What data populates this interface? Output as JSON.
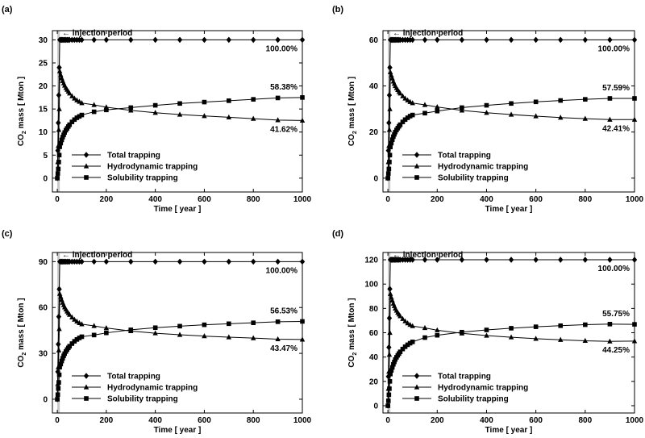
{
  "figure": {
    "ylabel_prefix": "CO",
    "ylabel_sub": "2",
    "ylabel_suffix": " mass [ Mton ]",
    "xlabel": "Time [ year ]",
    "injection_label": "injection period",
    "injection_arrow": "←",
    "legend": [
      "Total trapping",
      "Hydrodynamic trapping",
      "Solubility trapping"
    ],
    "series_markers": [
      "diamond",
      "triangle",
      "square"
    ],
    "line_color": "#000000",
    "injection_band_color": "#c8c8c8"
  },
  "chart_data": [
    {
      "type": "line",
      "panel_label": "(a)",
      "xlim": [
        -20,
        1000
      ],
      "ylim": [
        -3,
        32
      ],
      "xticks": [
        0,
        200,
        400,
        600,
        800,
        1000
      ],
      "yticks": [
        0,
        5,
        10,
        15,
        20,
        25,
        30
      ],
      "injection_period": [
        0,
        10
      ],
      "annotations": [
        "100.00%",
        "58.38%",
        "41.62%"
      ],
      "series": [
        {
          "name": "Total trapping",
          "x": [
            0,
            2,
            4,
            6,
            8,
            10,
            14,
            18,
            22,
            26,
            30,
            35,
            40,
            45,
            50,
            60,
            70,
            80,
            90,
            100,
            150,
            200,
            300,
            400,
            500,
            600,
            700,
            800,
            900,
            1000
          ],
          "y": [
            0,
            6,
            12,
            18,
            24,
            30,
            30,
            30,
            30,
            30,
            30,
            30,
            30,
            30,
            30,
            30,
            30,
            30,
            30,
            30,
            30,
            30,
            30,
            30,
            30,
            30,
            30,
            30,
            30,
            30
          ]
        },
        {
          "name": "Hydrodynamic trapping",
          "x": [
            0,
            2,
            4,
            6,
            8,
            10,
            14,
            18,
            22,
            26,
            30,
            35,
            40,
            45,
            50,
            60,
            70,
            80,
            90,
            100,
            150,
            200,
            300,
            400,
            500,
            600,
            700,
            800,
            900,
            1000
          ],
          "y": [
            0,
            3.5,
            7,
            10.5,
            15,
            23.2,
            22.4,
            21.7,
            21.1,
            20.6,
            20.1,
            19.6,
            19.2,
            18.8,
            18.4,
            17.8,
            17.3,
            16.9,
            16.6,
            16.3,
            15.9,
            15.4,
            14.7,
            14.2,
            13.8,
            13.5,
            13.2,
            12.9,
            12.6,
            12.5
          ]
        },
        {
          "name": "Solubility trapping",
          "x": [
            0,
            2,
            4,
            6,
            8,
            10,
            14,
            18,
            22,
            26,
            30,
            35,
            40,
            45,
            50,
            60,
            70,
            80,
            90,
            100,
            150,
            200,
            300,
            400,
            500,
            600,
            700,
            800,
            900,
            1000
          ],
          "y": [
            0,
            1,
            2,
            3.5,
            5,
            6.8,
            7.6,
            8.3,
            8.9,
            9.4,
            9.9,
            10.4,
            10.8,
            11.2,
            11.6,
            12.2,
            12.7,
            13.1,
            13.4,
            13.7,
            14.4,
            14.8,
            15.3,
            15.8,
            16.2,
            16.5,
            16.8,
            17.1,
            17.4,
            17.5
          ]
        }
      ]
    },
    {
      "type": "line",
      "panel_label": "(b)",
      "xlim": [
        -20,
        1000
      ],
      "ylim": [
        -6,
        64
      ],
      "xticks": [
        0,
        200,
        400,
        600,
        800,
        1000
      ],
      "yticks": [
        0,
        20,
        40,
        60
      ],
      "injection_period": [
        0,
        10
      ],
      "annotations": [
        "100.00%",
        "57.59%",
        "42.41%"
      ],
      "series": [
        {
          "name": "Total trapping",
          "x": [
            0,
            2,
            4,
            6,
            8,
            10,
            14,
            18,
            22,
            26,
            30,
            35,
            40,
            45,
            50,
            60,
            70,
            80,
            90,
            100,
            150,
            200,
            300,
            400,
            500,
            600,
            700,
            800,
            900,
            1000
          ],
          "y": [
            0,
            12,
            24,
            36,
            48,
            60,
            60,
            60,
            60,
            60,
            60,
            60,
            60,
            60,
            60,
            60,
            60,
            60,
            60,
            60,
            60,
            60,
            60,
            60,
            60,
            60,
            60,
            60,
            60,
            60
          ]
        },
        {
          "name": "Hydrodynamic trapping",
          "x": [
            0,
            2,
            4,
            6,
            8,
            10,
            14,
            18,
            22,
            26,
            30,
            35,
            40,
            45,
            50,
            60,
            70,
            80,
            90,
            100,
            150,
            200,
            300,
            400,
            500,
            600,
            700,
            800,
            900,
            1000
          ],
          "y": [
            0,
            7,
            14,
            21,
            30,
            46,
            44.6,
            43.3,
            42,
            41,
            40,
            39.1,
            38.3,
            37.5,
            36.8,
            35.6,
            34.6,
            33.8,
            33.1,
            32.6,
            31.8,
            30.9,
            29.4,
            28.4,
            27.6,
            26.9,
            26.3,
            25.8,
            25.4,
            25.4
          ]
        },
        {
          "name": "Solubility trapping",
          "x": [
            0,
            2,
            4,
            6,
            8,
            10,
            14,
            18,
            22,
            26,
            30,
            35,
            40,
            45,
            50,
            60,
            70,
            80,
            90,
            100,
            150,
            200,
            300,
            400,
            500,
            600,
            700,
            800,
            900,
            1000
          ],
          "y": [
            0,
            2,
            4,
            7,
            10,
            13.5,
            15.2,
            16.7,
            18,
            19,
            20,
            20.9,
            21.7,
            22.5,
            23.2,
            24.4,
            25.4,
            26.2,
            26.9,
            27.4,
            28.2,
            29.1,
            30.6,
            31.6,
            32.4,
            33.1,
            33.7,
            34.2,
            34.6,
            34.6
          ]
        }
      ]
    },
    {
      "type": "line",
      "panel_label": "(c)",
      "xlim": [
        -20,
        1000
      ],
      "ylim": [
        -9,
        96
      ],
      "xticks": [
        0,
        200,
        400,
        600,
        800,
        1000
      ],
      "yticks": [
        0,
        30,
        60,
        90
      ],
      "injection_period": [
        0,
        10
      ],
      "annotations": [
        "100.00%",
        "56.53%",
        "43.47%"
      ],
      "series": [
        {
          "name": "Total trapping",
          "x": [
            0,
            2,
            4,
            6,
            8,
            10,
            14,
            18,
            22,
            26,
            30,
            35,
            40,
            45,
            50,
            60,
            70,
            80,
            90,
            100,
            150,
            200,
            300,
            400,
            500,
            600,
            700,
            800,
            900,
            1000
          ],
          "y": [
            0,
            18,
            36,
            54,
            72,
            90,
            90,
            90,
            90,
            90,
            90,
            90,
            90,
            90,
            90,
            90,
            90,
            90,
            90,
            90,
            90,
            90,
            90,
            90,
            90,
            90,
            90,
            90,
            90,
            90
          ]
        },
        {
          "name": "Hydrodynamic trapping",
          "x": [
            0,
            2,
            4,
            6,
            8,
            10,
            14,
            18,
            22,
            26,
            30,
            35,
            40,
            45,
            50,
            60,
            70,
            80,
            90,
            100,
            150,
            200,
            300,
            400,
            500,
            600,
            700,
            800,
            900,
            1000
          ],
          "y": [
            0,
            10,
            21,
            32,
            46,
            69,
            67,
            65,
            63.2,
            61.6,
            60.2,
            58.8,
            57.5,
            56.4,
            55.3,
            53.6,
            52.1,
            50.9,
            49.9,
            49.1,
            48,
            46.6,
            44.6,
            43.2,
            42.2,
            41.3,
            40.6,
            40,
            39.3,
            39.1
          ]
        },
        {
          "name": "Solubility trapping",
          "x": [
            0,
            2,
            4,
            6,
            8,
            10,
            14,
            18,
            22,
            26,
            30,
            35,
            40,
            45,
            50,
            60,
            70,
            80,
            90,
            100,
            150,
            200,
            300,
            400,
            500,
            600,
            700,
            800,
            900,
            1000
          ],
          "y": [
            0,
            3,
            7,
            11,
            16,
            21,
            23,
            25,
            26.8,
            28.4,
            29.8,
            31.2,
            32.5,
            33.6,
            34.7,
            36.4,
            37.9,
            39.1,
            40.1,
            40.9,
            42,
            43.4,
            45.4,
            46.8,
            47.8,
            48.7,
            49.4,
            50,
            50.7,
            50.9
          ]
        }
      ]
    },
    {
      "type": "line",
      "panel_label": "(d)",
      "xlim": [
        -20,
        1000
      ],
      "ylim": [
        -6,
        126
      ],
      "xticks": [
        0,
        200,
        400,
        600,
        800,
        1000
      ],
      "yticks": [
        0,
        20,
        40,
        60,
        80,
        100,
        120
      ],
      "injection_period": [
        0,
        10
      ],
      "annotations": [
        "100.00%",
        "55.75%",
        "44.25%"
      ],
      "series": [
        {
          "name": "Total trapping",
          "x": [
            0,
            2,
            4,
            6,
            8,
            10,
            14,
            18,
            22,
            26,
            30,
            35,
            40,
            45,
            50,
            60,
            70,
            80,
            90,
            100,
            150,
            200,
            300,
            400,
            500,
            600,
            700,
            800,
            900,
            1000
          ],
          "y": [
            0,
            24,
            48,
            72,
            96,
            120,
            120,
            120,
            120,
            120,
            120,
            120,
            120,
            120,
            120,
            120,
            120,
            120,
            120,
            120,
            120,
            120,
            120,
            120,
            120,
            120,
            120,
            120,
            120,
            120
          ]
        },
        {
          "name": "Hydrodynamic trapping",
          "x": [
            0,
            2,
            4,
            6,
            8,
            10,
            14,
            18,
            22,
            26,
            30,
            35,
            40,
            45,
            50,
            60,
            70,
            80,
            90,
            100,
            150,
            200,
            300,
            400,
            500,
            600,
            700,
            800,
            900,
            1000
          ],
          "y": [
            0,
            14,
            28,
            42,
            60,
            92,
            89,
            86.5,
            84,
            82,
            80,
            78.2,
            76.6,
            75.1,
            73.7,
            71.4,
            69.5,
            67.9,
            66.6,
            65.5,
            64,
            62.1,
            59.5,
            57.7,
            56.3,
            55.1,
            54.2,
            53.4,
            52.9,
            53.1
          ]
        },
        {
          "name": "Solubility trapping",
          "x": [
            0,
            2,
            4,
            6,
            8,
            10,
            14,
            18,
            22,
            26,
            30,
            35,
            40,
            45,
            50,
            60,
            70,
            80,
            90,
            100,
            150,
            200,
            300,
            400,
            500,
            600,
            700,
            800,
            900,
            1000
          ],
          "y": [
            0,
            4,
            9,
            14,
            20,
            26,
            29,
            31.5,
            34,
            36,
            38,
            39.8,
            41.4,
            42.9,
            44.3,
            46.6,
            48.5,
            50.1,
            51.4,
            52.5,
            56,
            57.9,
            60.5,
            62.3,
            63.7,
            64.9,
            65.8,
            66.6,
            67.1,
            66.9
          ]
        }
      ]
    }
  ]
}
